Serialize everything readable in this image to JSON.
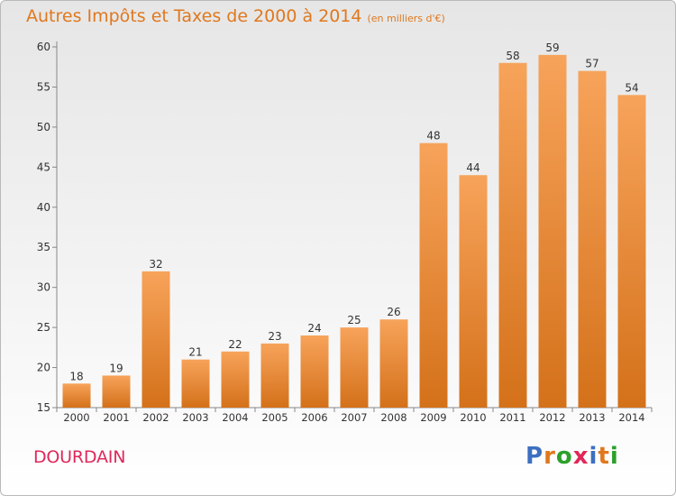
{
  "header": {
    "title": "Autres Impôts et Taxes de 2000 à 2014",
    "subtitle": "(en milliers d'€)"
  },
  "footer": {
    "commune": "DOURDAIN",
    "logo_text": "Proxiti",
    "logo_colors": [
      "#3c6fc0",
      "#e0781e",
      "#2ca02c",
      "#e0285a",
      "#3c6fc0",
      "#e0781e",
      "#2ca02c"
    ]
  },
  "colors": {
    "bar_top": "#f7a35a",
    "bar_bottom": "#d4711a",
    "title": "#e0781e",
    "commune": "#e0285a"
  },
  "chart_data": {
    "type": "bar",
    "categories": [
      "2000",
      "2001",
      "2002",
      "2003",
      "2004",
      "2005",
      "2006",
      "2007",
      "2008",
      "2009",
      "2010",
      "2011",
      "2012",
      "2013",
      "2014"
    ],
    "values": [
      18,
      19,
      32,
      21,
      22,
      23,
      24,
      25,
      26,
      48,
      44,
      58,
      59,
      57,
      54
    ],
    "data_labels": [
      "18",
      "19",
      "32",
      "21",
      "22",
      "23",
      "24",
      "25",
      "26",
      "48",
      "44",
      "58",
      "59",
      "57",
      "54"
    ],
    "y_ticks": [
      15,
      20,
      25,
      30,
      35,
      40,
      45,
      50,
      55,
      60
    ],
    "ylim": [
      15,
      60
    ],
    "grid": false
  }
}
